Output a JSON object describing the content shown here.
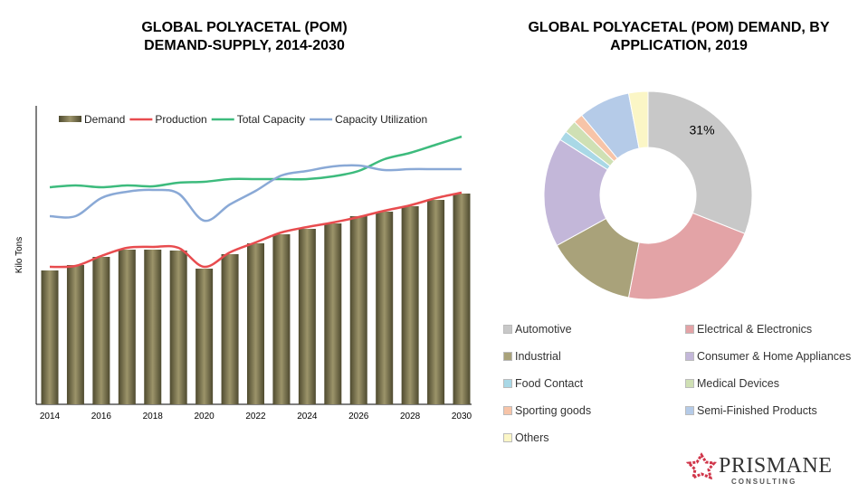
{
  "chart_data": [
    {
      "type": "bar",
      "title": "GLOBAL POLYACETAL (POM) DEMAND-SUPPLY, 2014-2030",
      "title_lines": [
        "GLOBAL POLYACETAL (POM)",
        "DEMAND-SUPPLY, 2014-2030"
      ],
      "ylabel": "Kilo Tons",
      "xlabel": "",
      "ylim": [
        0,
        330
      ],
      "grid": false,
      "legend_placement": "top",
      "categories": [
        2014,
        2015,
        2016,
        2017,
        2018,
        2019,
        2020,
        2021,
        2022,
        2023,
        2024,
        2025,
        2026,
        2027,
        2028,
        2029,
        2030
      ],
      "tick_labels": [
        "2014",
        "2016",
        "2018",
        "2020",
        "2022",
        "2024",
        "2026",
        "2028",
        "2030"
      ],
      "series": [
        {
          "name": "Demand",
          "type": "bar",
          "color": "#7d7550",
          "values": [
            148,
            154,
            163,
            171,
            171,
            170,
            150,
            166,
            178,
            188,
            194,
            200,
            208,
            213,
            219,
            226,
            233
          ]
        },
        {
          "name": "Production",
          "type": "line",
          "color": "#e84c4f",
          "values": [
            152,
            153,
            164,
            173,
            174,
            173,
            152,
            168,
            179,
            190,
            196,
            201,
            207,
            214,
            220,
            228,
            234
          ]
        },
        {
          "name": "Total Capacity",
          "type": "line",
          "color": "#3dbb7d",
          "values": [
            240,
            242,
            240,
            242,
            241,
            245,
            246,
            249,
            249,
            249,
            249,
            252,
            258,
            271,
            278,
            287,
            296
          ]
        },
        {
          "name": "Capacity Utilization",
          "type": "line",
          "color": "#8aa9d6",
          "values": [
            208,
            208,
            228,
            235,
            237,
            233,
            203,
            221,
            236,
            253,
            258,
            263,
            264,
            259,
            260,
            260,
            260
          ]
        }
      ]
    },
    {
      "type": "pie",
      "title": "GLOBAL POLYACETAL (POM) DEMAND, BY APPLICATION, 2019",
      "title_lines": [
        "GLOBAL POLYACETAL (POM) DEMAND, BY",
        "APPLICATION, 2019"
      ],
      "donut": true,
      "legend_placement": "bottom",
      "slices": [
        {
          "label": "Automotive",
          "value": 31,
          "color": "#c8c8c8",
          "data_label": "31%"
        },
        {
          "label": "Electrical & Electronics",
          "value": 22,
          "color": "#e3a3a6"
        },
        {
          "label": "Industrial",
          "value": 14,
          "color": "#a9a27a"
        },
        {
          "label": "Consumer & Home Appliances",
          "value": 17,
          "color": "#c3b7d9"
        },
        {
          "label": "Food Contact",
          "value": 1.5,
          "color": "#a9d8e6"
        },
        {
          "label": "Medical Devices",
          "value": 2,
          "color": "#cfe0b4"
        },
        {
          "label": "Sporting goods",
          "value": 1.5,
          "color": "#f7c4a8"
        },
        {
          "label": "Semi-Finished Products",
          "value": 8,
          "color": "#b5cbe8"
        },
        {
          "label": "Others",
          "value": 3,
          "color": "#fbf6c6"
        }
      ]
    }
  ],
  "logo": {
    "name": "PRISMANE",
    "sub": "CONSULTING",
    "color": "#d0364a"
  }
}
